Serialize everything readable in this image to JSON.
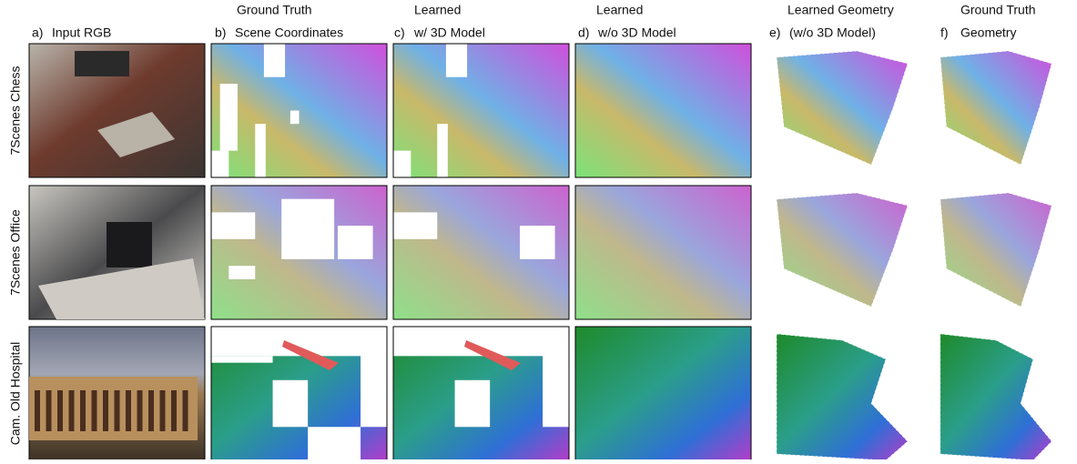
{
  "columns": [
    {
      "letter": "a)",
      "lines": [
        "Input RGB"
      ]
    },
    {
      "letter": "b)",
      "lines": [
        "Ground Truth",
        "Scene Coordinates"
      ]
    },
    {
      "letter": "c)",
      "lines": [
        "Learned",
        "w/ 3D Model"
      ]
    },
    {
      "letter": "d)",
      "lines": [
        "Learned",
        "w/o 3D Model"
      ]
    },
    {
      "letter": "e)",
      "lines": [
        "Learned Geometry",
        "(w/o 3D Model)"
      ]
    },
    {
      "letter": "f)",
      "lines": [
        "Ground Truth",
        "Geometry"
      ]
    }
  ],
  "rows": [
    "7Scenes Chess",
    "7Scenes Office",
    "Cam. Old Hospital"
  ]
}
